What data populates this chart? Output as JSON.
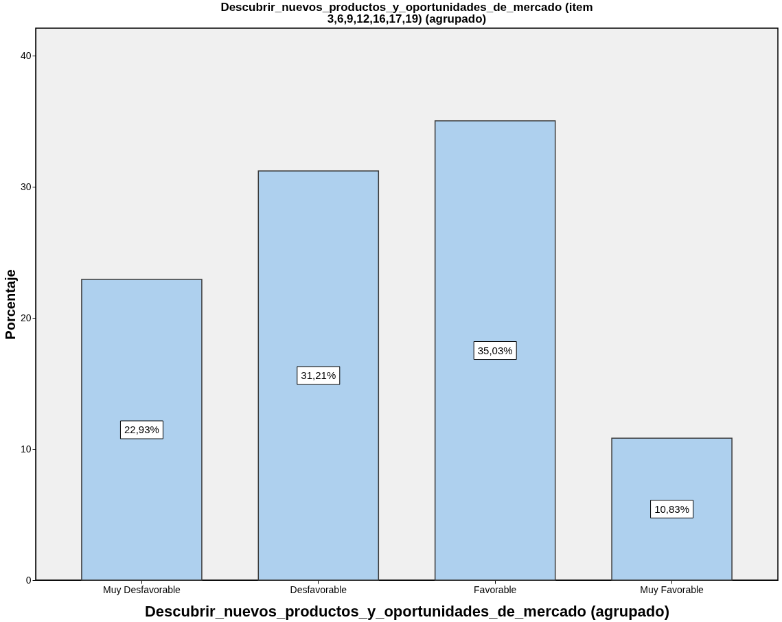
{
  "chart_data": {
    "type": "bar",
    "title": "Descubrir_nuevos_productos_y_oportunidades_de_mercado (item 3,6,9,12,16,17,19) (agrupado)",
    "xlabel": "Descubrir_nuevos_productos_y_oportunidades_de_mercado (agrupado)",
    "ylabel": "Porcentaje",
    "categories": [
      "Muy Desfavorable",
      "Desfavorable",
      "Favorable",
      "Muy Favorable"
    ],
    "values": [
      22.93,
      31.21,
      35.03,
      10.83
    ],
    "value_labels": [
      "22,93%",
      "31,21%",
      "35,03%",
      "10,83%"
    ],
    "color": "#aed0ee",
    "ylim": [
      0,
      42.1
    ],
    "yticks": [
      0,
      10,
      20,
      30,
      40
    ],
    "grid": false
  }
}
